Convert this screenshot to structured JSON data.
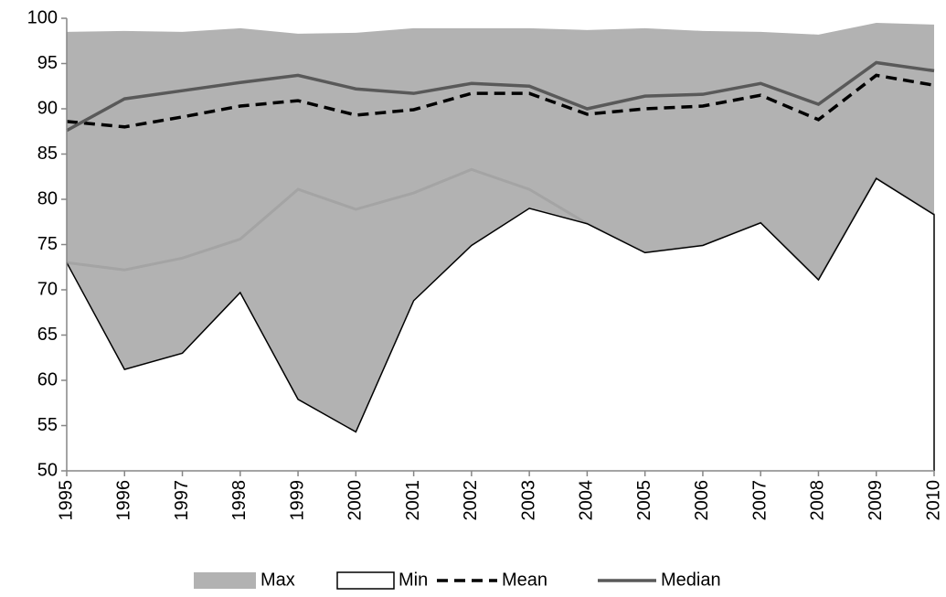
{
  "chart_data": {
    "type": "area",
    "categories": [
      "1995",
      "1996",
      "1997",
      "1998",
      "1999",
      "2000",
      "2001",
      "2002",
      "2003",
      "2004",
      "2005",
      "2006",
      "2007",
      "2008",
      "2009",
      "2010"
    ],
    "ylim": [
      50,
      100
    ],
    "yticks": [
      50,
      55,
      60,
      65,
      70,
      75,
      80,
      85,
      90,
      95,
      100
    ],
    "legend": "bottom",
    "series": [
      {
        "name": "Max",
        "color": "#b2b2b2",
        "values": [
          98.5,
          98.6,
          98.5,
          98.9,
          98.3,
          98.4,
          98.9,
          98.9,
          98.9,
          98.7,
          98.9,
          98.6,
          98.5,
          98.2,
          99.5,
          99.3
        ]
      },
      {
        "color": "#a4a4a4",
        "values": [
          73.0,
          72.2,
          73.5,
          75.6,
          81.1,
          78.9,
          80.7,
          83.3,
          81.1,
          77.3,
          74.1,
          74.9,
          77.4,
          71.1,
          82.3,
          78.3
        ]
      },
      {
        "name": "Min",
        "color": "#ffffff",
        "values": [
          73.0,
          61.2,
          63.0,
          69.7,
          57.9,
          54.3,
          68.8,
          74.9,
          79.0,
          77.3,
          74.1,
          74.9,
          77.4,
          71.1,
          82.3,
          78.3
        ]
      },
      {
        "name": "Mean",
        "color": "#000000",
        "values": [
          88.6,
          88.0,
          89.1,
          90.3,
          90.9,
          89.3,
          89.9,
          91.7,
          91.7,
          89.4,
          90.0,
          90.3,
          91.5,
          88.8,
          93.7,
          92.6
        ]
      },
      {
        "name": "Median",
        "color": "#595959",
        "values": [
          87.6,
          91.1,
          92.0,
          92.9,
          93.7,
          92.2,
          91.7,
          92.8,
          92.5,
          90.0,
          91.4,
          91.6,
          92.8,
          90.5,
          95.1,
          94.2
        ]
      }
    ]
  }
}
